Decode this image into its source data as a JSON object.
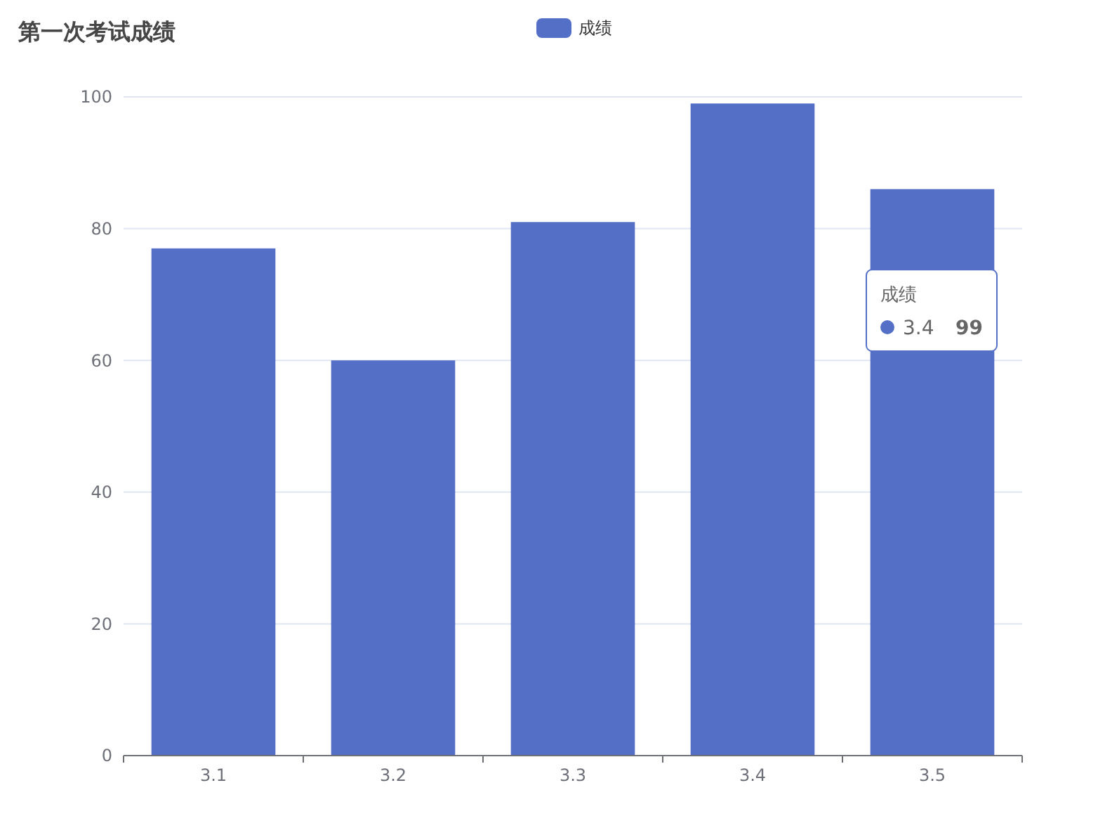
{
  "chart_data": {
    "type": "bar",
    "title": "第一次考试成绩",
    "categories": [
      "3.1",
      "3.2",
      "3.3",
      "3.4",
      "3.5"
    ],
    "series": [
      {
        "name": "成绩",
        "color": "#5470c6",
        "values": [
          77,
          60,
          81,
          99,
          86
        ]
      }
    ],
    "ylim": [
      0,
      100
    ],
    "yticks": [
      0,
      20,
      40,
      60,
      80,
      100
    ],
    "grid": "y",
    "legend": "top",
    "annotations": [
      "成绩",
      "3.4",
      "99"
    ]
  }
}
